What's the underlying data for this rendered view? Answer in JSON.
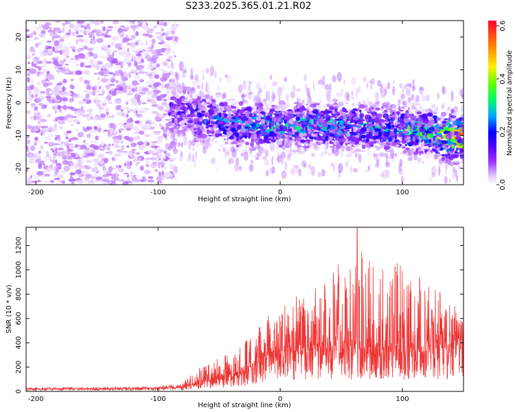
{
  "title": "S233.2025.365.01.21.R02",
  "chart_data": [
    {
      "type": "heatmap",
      "name": "spectrogram",
      "xlabel": "Height of straight line (km)",
      "ylabel": "Frequency (Hz)",
      "xlim": [
        -208,
        150
      ],
      "ylim": [
        -25,
        25
      ],
      "xticks": [
        -200,
        -100,
        0,
        100
      ],
      "yticks": [
        -20,
        -10,
        0,
        10,
        20
      ],
      "colorbar": {
        "label": "Normalized spectral amplitude",
        "range": [
          0.0,
          0.62
        ],
        "ticks": [
          0.0,
          0.2,
          0.4,
          0.6
        ],
        "tick_labels": [
          "0.0",
          "0.2",
          "0.4",
          "0.6"
        ]
      },
      "noise_region_x": [
        -208,
        -85
      ],
      "noise_amplitude": 0.05,
      "signal_band": {
        "x": [
          -90,
          -60,
          -30,
          0,
          30,
          60,
          90,
          120,
          150
        ],
        "center_freq": [
          -2,
          -5,
          -7,
          -7,
          -7,
          -7,
          -8,
          -9,
          -11
        ],
        "half_width": [
          6,
          6,
          5,
          5,
          5,
          5,
          5,
          5,
          5
        ],
        "amplitude": [
          0.15,
          0.2,
          0.3,
          0.3,
          0.3,
          0.3,
          0.3,
          0.35,
          0.6
        ]
      }
    },
    {
      "type": "line",
      "name": "snr",
      "xlabel": "Height of straight line (km)",
      "ylabel": "SNR (10 * v/v)",
      "xlim": [
        -208,
        150
      ],
      "ylim": [
        0,
        1350
      ],
      "xticks": [
        -200,
        -100,
        0,
        100
      ],
      "yticks": [
        0,
        200,
        400,
        600,
        800,
        1000,
        1200
      ],
      "color": "#ee3333",
      "envelope": {
        "x": [
          -208,
          -150,
          -100,
          -80,
          -70,
          -60,
          -50,
          -40,
          -30,
          -20,
          -10,
          0,
          20,
          40,
          60,
          80,
          100,
          120,
          140,
          150
        ],
        "baseline": [
          20,
          20,
          25,
          30,
          60,
          80,
          90,
          110,
          140,
          200,
          260,
          300,
          320,
          330,
          320,
          320,
          310,
          320,
          340,
          380
        ],
        "peak": [
          35,
          35,
          40,
          70,
          170,
          230,
          300,
          330,
          430,
          520,
          650,
          720,
          830,
          1000,
          1200,
          1100,
          1050,
          900,
          750,
          650
        ]
      },
      "max_value": 1350,
      "max_at_x": 63
    }
  ]
}
